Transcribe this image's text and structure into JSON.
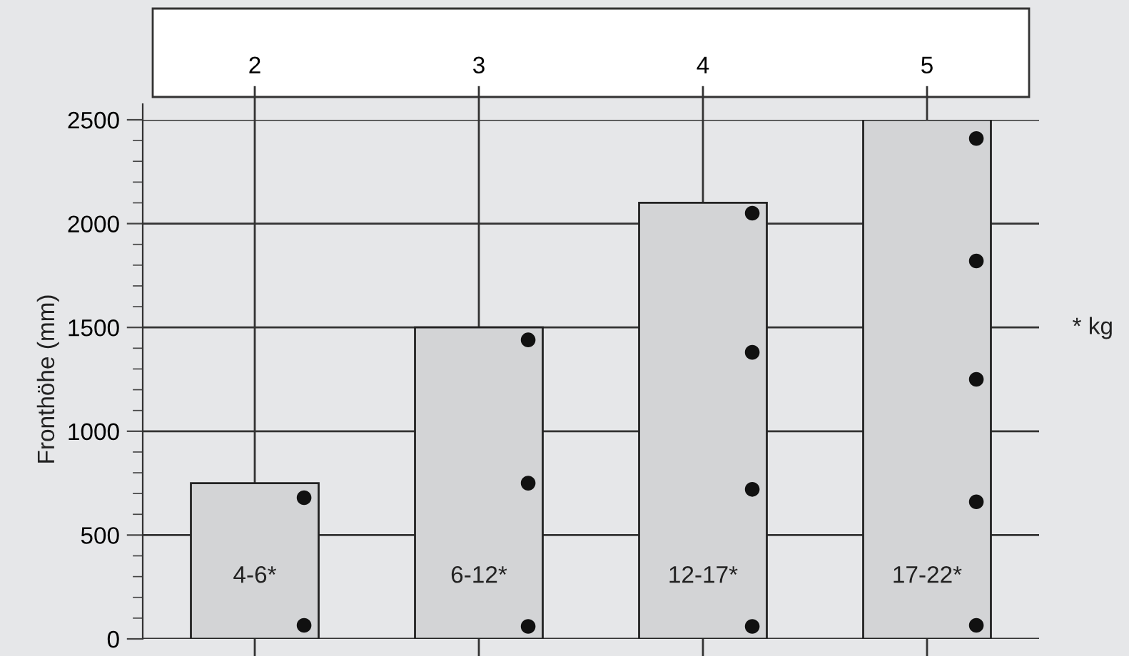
{
  "chart_data": {
    "type": "bar",
    "ylabel": "Fronthöhe (mm)",
    "categories": [
      "2",
      "3",
      "4",
      "5"
    ],
    "series": [
      {
        "color": "#d3d4d6",
        "values": [
          750,
          1500,
          2100,
          2500
        ]
      },
      {
        "type": "scatter",
        "color": "#111111",
        "x": [
          "2",
          "2",
          "3",
          "3",
          "3",
          "4",
          "4",
          "4",
          "4",
          "5",
          "5",
          "5",
          "5",
          "5"
        ],
        "values": [
          680,
          65,
          1440,
          750,
          60,
          2050,
          1380,
          720,
          60,
          2410,
          1820,
          1250,
          660,
          65
        ]
      }
    ],
    "ylim": [
      0,
      2500
    ],
    "yticks": [
      0,
      500,
      1000,
      1500,
      2000,
      2500
    ],
    "grid": true,
    "marker": "circle",
    "annotations": [
      "4-6*",
      "6-12*",
      "12-17*",
      "17-22*",
      "* kg"
    ]
  }
}
